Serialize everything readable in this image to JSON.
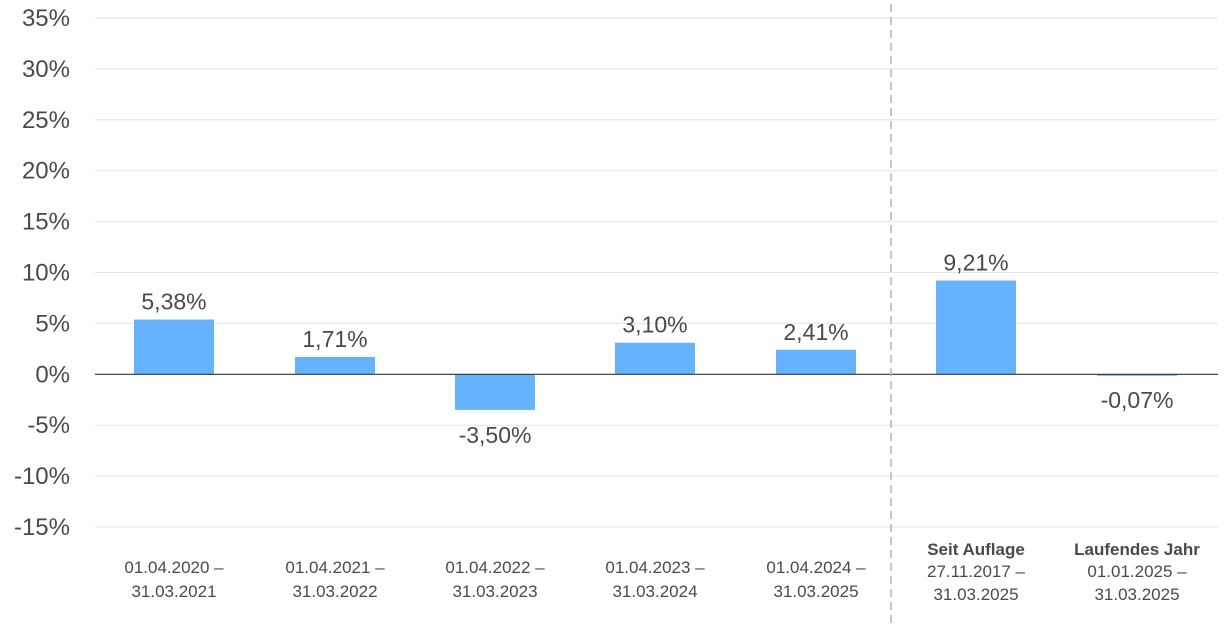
{
  "chart_data": {
    "type": "bar",
    "colors": {
      "bar": "#66b2ff",
      "grid": "#e3e3e3",
      "zero_line": "#333333",
      "separator": "#b5b5b5",
      "text": "#4a4a4a"
    },
    "ylim": [
      -15,
      35
    ],
    "yticks": [
      "35%",
      "30%",
      "25%",
      "20%",
      "15%",
      "10%",
      "5%",
      "0%",
      "-5%",
      "-10%",
      "-15%"
    ],
    "ytick_values": [
      35,
      30,
      25,
      20,
      15,
      10,
      5,
      0,
      -5,
      -10,
      -15
    ],
    "grid": true,
    "separator_after_index": 4,
    "categories": [
      {
        "heading": "",
        "line1": "01.04.2020 –",
        "line2": "31.03.2021"
      },
      {
        "heading": "",
        "line1": "01.04.2021 –",
        "line2": "31.03.2022"
      },
      {
        "heading": "",
        "line1": "01.04.2022 –",
        "line2": "31.03.2023"
      },
      {
        "heading": "",
        "line1": "01.04.2023 –",
        "line2": "31.03.2024"
      },
      {
        "heading": "",
        "line1": "01.04.2024 –",
        "line2": "31.03.2025"
      },
      {
        "heading": "Seit Auflage",
        "line1": "27.11.2017 –",
        "line2": "31.03.2025"
      },
      {
        "heading": "Laufendes Jahr",
        "line1": "01.01.2025 –",
        "line2": "31.03.2025"
      }
    ],
    "values": [
      5.38,
      1.71,
      -3.5,
      3.1,
      2.41,
      9.21,
      -0.07
    ],
    "value_labels": [
      "5,38%",
      "1,71%",
      "-3,50%",
      "3,10%",
      "2,41%",
      "9,21%",
      "-0,07%"
    ]
  }
}
